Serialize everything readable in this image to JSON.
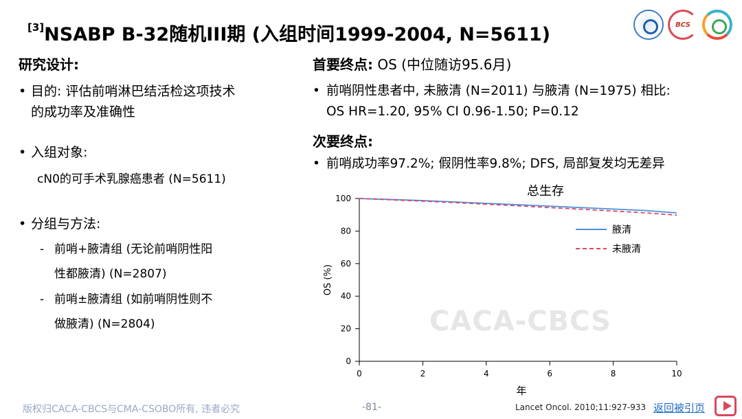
{
  "slide": {
    "title_sup": "[3]",
    "title": "NSABP B-32随机III期 (入组时间1999-2004, N=5611)"
  },
  "left": {
    "heading": "研究设计:",
    "bullet1_line1": "目的: 评估前哨淋巴结活检这项技术",
    "bullet1_line2": "的成功率及准确性",
    "bullet2": "入组对象:",
    "bullet2_sub": "cN0的可手术乳腺癌患者 (N=5611)",
    "bullet3": "分组与方法:",
    "dash1_line1": "前哨+腋清组 (无论前哨阴性阳",
    "dash1_line2": "性都腋清) (N=2807)",
    "dash2_line1": "前哨±腋清组 (如前哨阴性则不",
    "dash2_line2": "做腋清) (N=2804)"
  },
  "right": {
    "primary_label": "首要终点:",
    "primary_value": " OS (中位随访95.6月)",
    "primary_line1": "前哨阴性患者中, 未腋清 (N=2011) 与腋清 (N=1975) 相比:",
    "primary_line2": "OS HR=1.20, 95% CI 0.96-1.50; P=0.12",
    "secondary_label": "次要终点:",
    "secondary_line": "前哨成功率97.2%; 假阴性率9.8%; DFS, 局部复发均无差异"
  },
  "chart_data": {
    "type": "line",
    "title": "总生存",
    "xlabel": "年",
    "ylabel": "OS (%)",
    "xlim": [
      0,
      10
    ],
    "ylim": [
      0,
      100
    ],
    "xticks": [
      0,
      2,
      4,
      6,
      8,
      10
    ],
    "yticks": [
      0,
      20,
      40,
      60,
      80,
      100
    ],
    "legend_position": "top-right",
    "series": [
      {
        "name": "腋清",
        "color": "#4a90d9",
        "style": "solid",
        "x": [
          0,
          1,
          2,
          3,
          4,
          5,
          6,
          7,
          8,
          9,
          10
        ],
        "y": [
          100,
          99.4,
          98.7,
          97.9,
          97.0,
          96.2,
          95.3,
          94.4,
          93.5,
          92.6,
          91.2
        ]
      },
      {
        "name": "未腋清",
        "color": "#d9486a",
        "style": "dashed",
        "x": [
          0,
          1,
          2,
          3,
          4,
          5,
          6,
          7,
          8,
          9,
          10
        ],
        "y": [
          100,
          99.2,
          98.4,
          97.5,
          96.5,
          95.5,
          94.4,
          93.4,
          92.3,
          91.2,
          89.8
        ]
      }
    ]
  },
  "watermark": "CACA-CBCS",
  "footer": {
    "copyright": "版权归CACA-CBCS与CMA-CSOBO所有, 违者必究",
    "page": "-81-",
    "reference": "Lancet Oncol. 2010;11:927-933",
    "back_link": "返回被引页"
  },
  "logos": {
    "logo2_text": "BCS"
  }
}
